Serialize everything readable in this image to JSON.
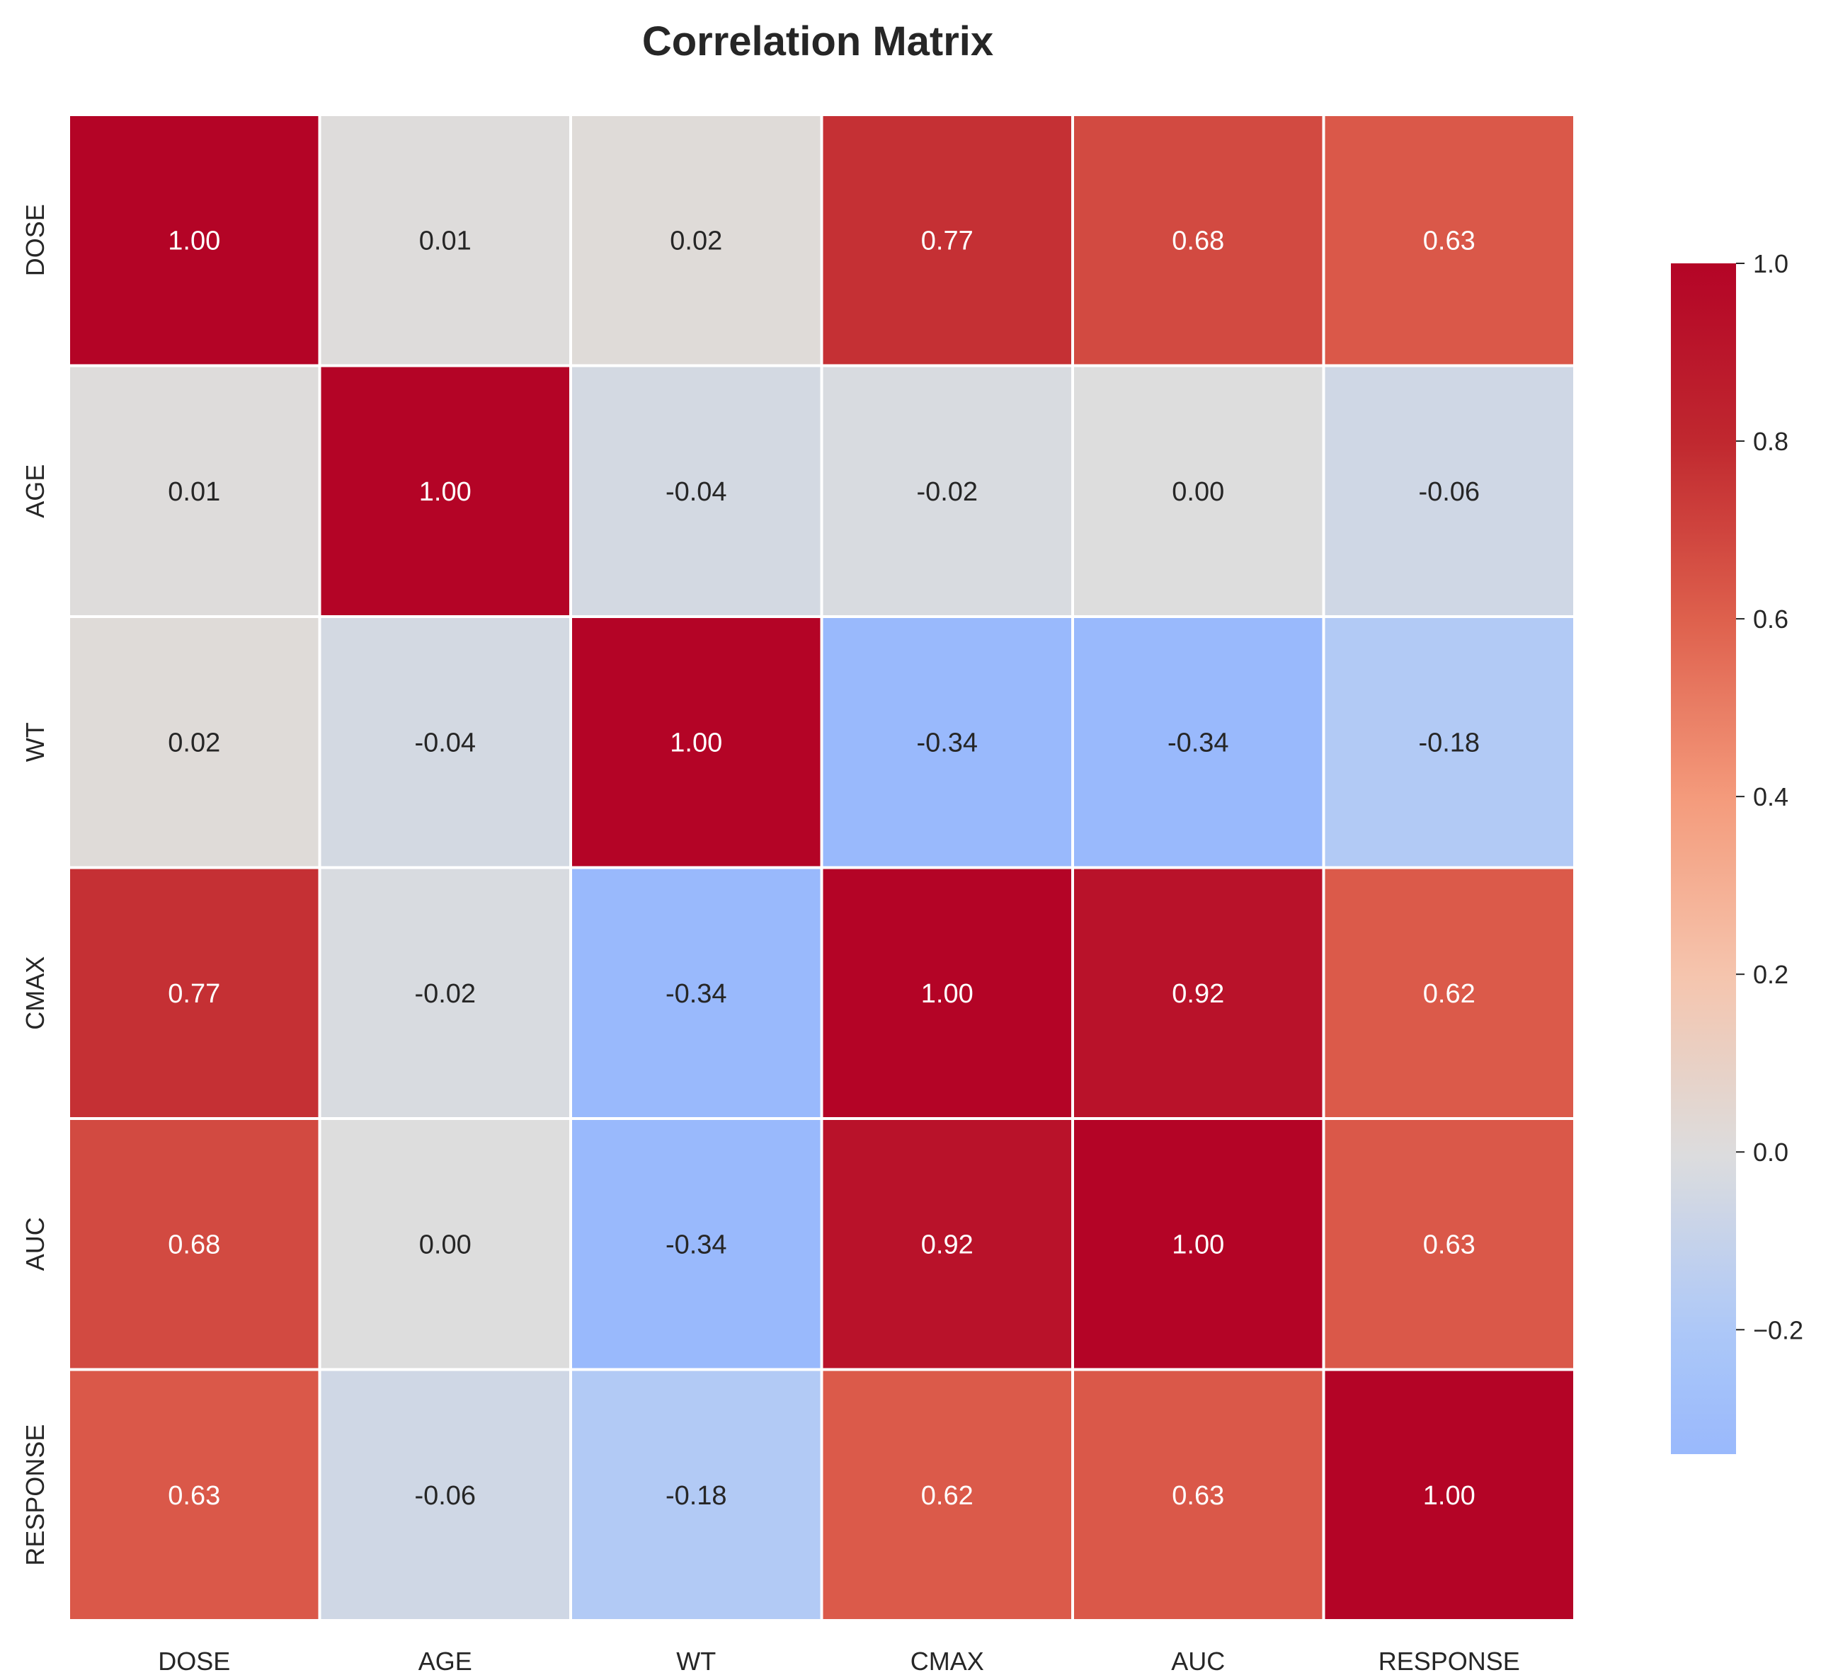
{
  "chart_data": {
    "type": "heatmap",
    "title": "Correlation Matrix",
    "xlabel": "",
    "ylabel": "",
    "categories": [
      "DOSE",
      "AGE",
      "WT",
      "CMAX",
      "AUC",
      "RESPONSE"
    ],
    "values": [
      [
        1.0,
        0.01,
        0.02,
        0.77,
        0.68,
        0.63
      ],
      [
        0.01,
        1.0,
        -0.04,
        -0.02,
        0.0,
        -0.06
      ],
      [
        0.02,
        -0.04,
        1.0,
        -0.34,
        -0.34,
        -0.18
      ],
      [
        0.77,
        -0.02,
        -0.34,
        1.0,
        0.92,
        0.62
      ],
      [
        0.68,
        0.0,
        -0.34,
        0.92,
        1.0,
        0.63
      ],
      [
        0.63,
        -0.06,
        -0.18,
        0.62,
        0.63,
        1.0
      ]
    ],
    "value_format": "2 decimals",
    "colormap": "coolwarm",
    "center": 0.0,
    "vmin": -0.34,
    "vmax": 1.0,
    "colorbar_ticks": [
      "−0.2",
      "0.0",
      "0.2",
      "0.4",
      "0.6",
      "0.8",
      "1.0"
    ],
    "colorbar_tick_values": [
      -0.2,
      0.0,
      0.2,
      0.4,
      0.6,
      0.8,
      1.0
    ],
    "legend": "colorbar right",
    "grid": false,
    "cell_border_color": "#ffffff"
  }
}
